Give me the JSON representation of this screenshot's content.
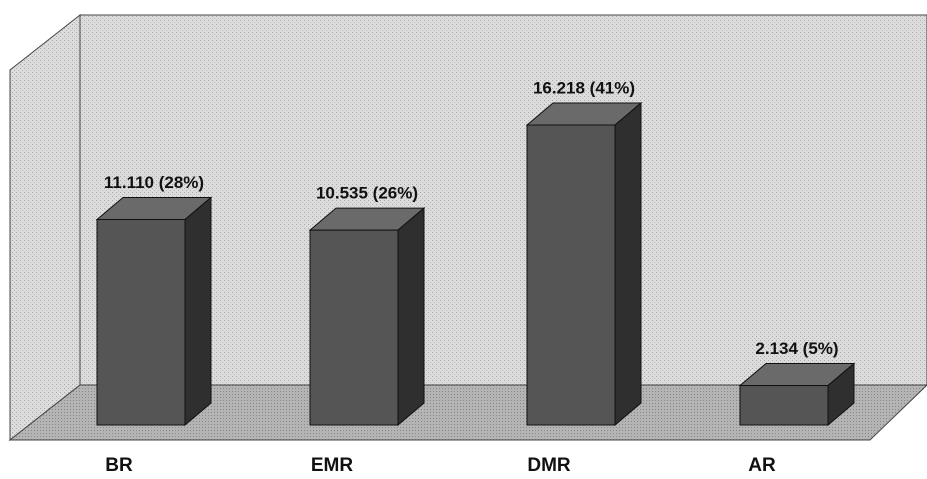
{
  "chart_data": {
    "type": "bar3d",
    "categories": [
      "BR",
      "EMR",
      "DMR",
      "AR"
    ],
    "values": [
      11110,
      10535,
      16218,
      2134
    ],
    "value_labels": [
      "11.110 (28%)",
      "10.535 (26%)",
      "16.218 (41%)",
      "2.134 (5%)"
    ],
    "color": "#555555"
  }
}
